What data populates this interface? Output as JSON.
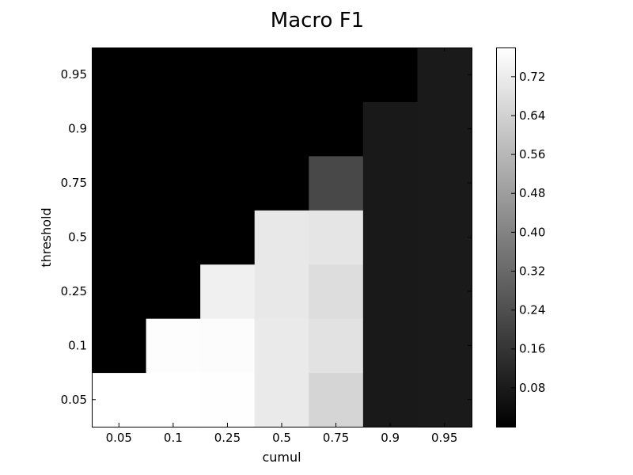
{
  "chart_data": {
    "type": "heatmap",
    "title": "Macro F1",
    "xlabel": "cumul",
    "ylabel": "threshold",
    "x_categories": [
      "0.05",
      "0.1",
      "0.25",
      "0.5",
      "0.75",
      "0.9",
      "0.95"
    ],
    "y_categories": [
      "0.05",
      "0.1",
      "0.25",
      "0.5",
      "0.75",
      "0.9",
      "0.95"
    ],
    "values": [
      [
        0.78,
        0.78,
        0.778,
        0.715,
        0.65,
        0.078,
        0.08
      ],
      [
        0.0,
        0.775,
        0.77,
        0.715,
        0.69,
        0.078,
        0.08
      ],
      [
        0.0,
        0.0,
        0.735,
        0.71,
        0.675,
        0.078,
        0.08
      ],
      [
        0.0,
        0.0,
        0.0,
        0.71,
        0.7,
        0.078,
        0.08
      ],
      [
        0.0,
        0.0,
        0.0,
        0.0,
        0.22,
        0.078,
        0.08
      ],
      [
        0.0,
        0.0,
        0.0,
        0.0,
        0.0,
        0.078,
        0.08
      ],
      [
        0.0,
        0.0,
        0.0,
        0.0,
        0.0,
        0.0,
        0.08
      ]
    ],
    "colormap": "gray",
    "vmin": 0.0,
    "vmax": 0.78,
    "colorbar_ticks": [
      "0.08",
      "0.16",
      "0.24",
      "0.32",
      "0.40",
      "0.48",
      "0.56",
      "0.64",
      "0.72"
    ],
    "grid": false
  }
}
